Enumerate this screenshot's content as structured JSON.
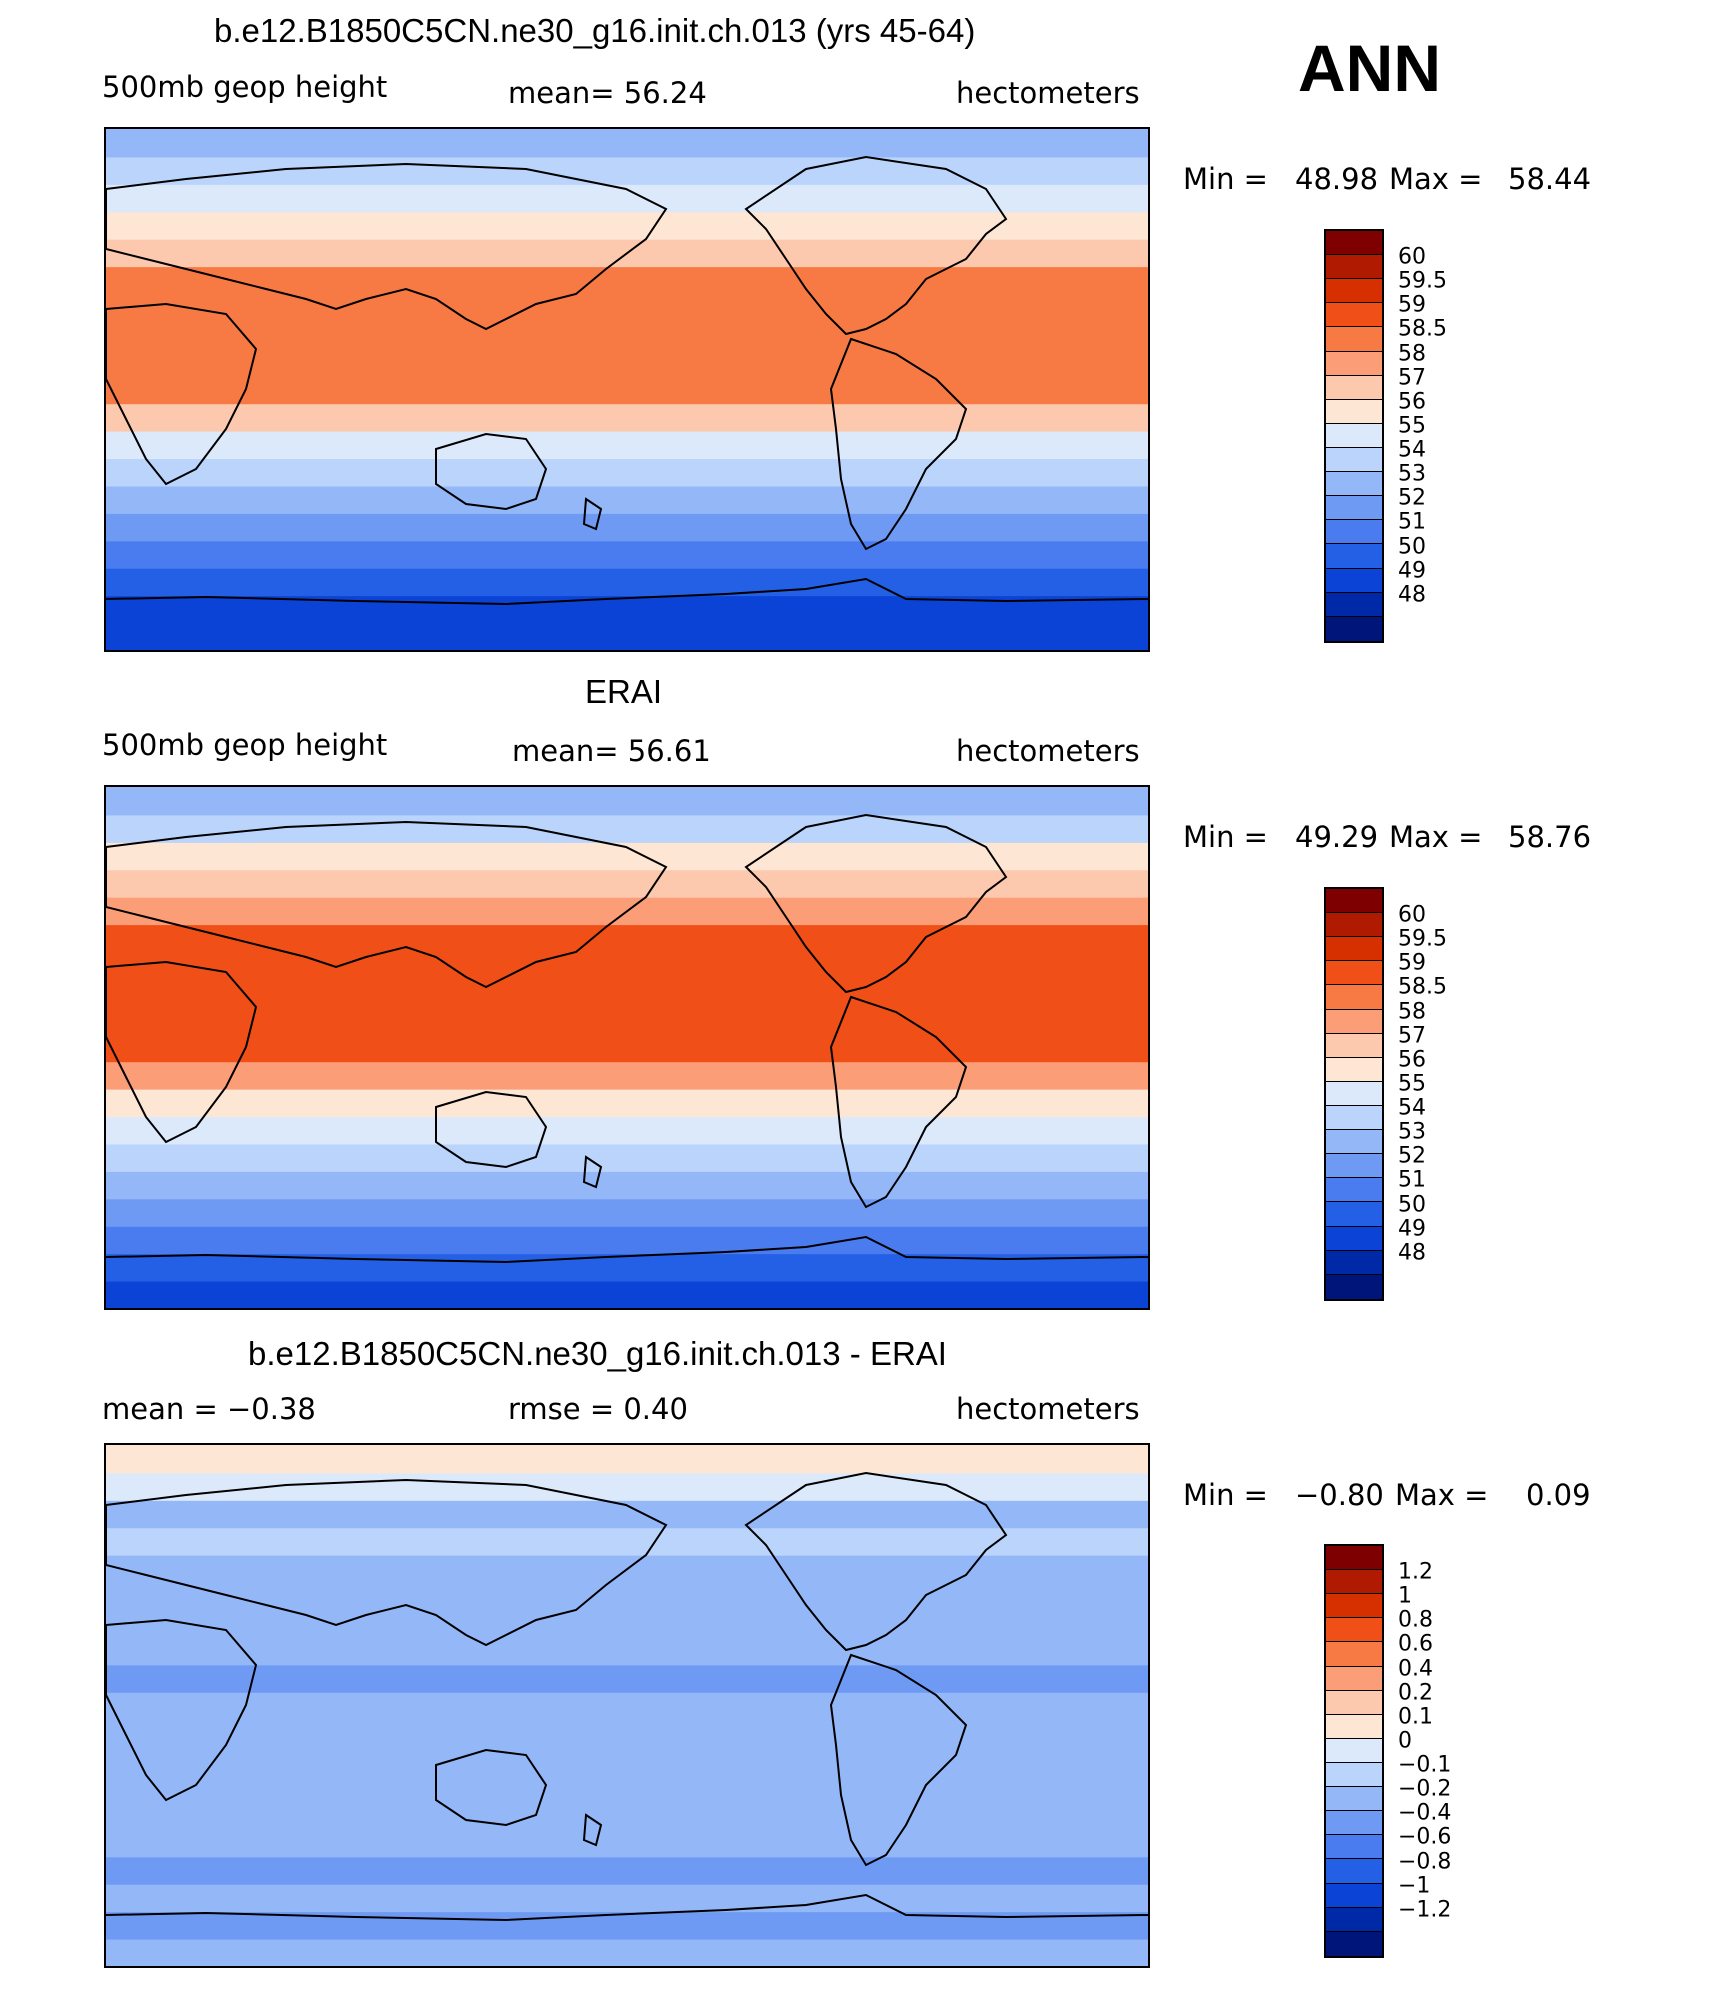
{
  "season": "ANN",
  "panels": [
    {
      "title": "b.e12.B1850C5CN.ne30_g16.init.ch.013 (yrs 45-64)",
      "left_label": "500mb  geop  height",
      "center_label": "mean=   56.24",
      "units": "hectometers",
      "min_label": "Min  =",
      "min_value": "48.98",
      "max_label": "Max  =",
      "max_value": "58.44"
    },
    {
      "title": "ERAI",
      "left_label": "500mb  geop  height",
      "center_label": "mean=   56.61",
      "units": "hectometers",
      "min_label": "Min  =",
      "min_value": "49.29",
      "max_label": "Max  =",
      "max_value": "58.76"
    },
    {
      "title": "b.e12.B1850C5CN.ne30_g16.init.ch.013 - ERAI",
      "left_label": "mean  =    −0.38",
      "center_label": "rmse  =     0.40",
      "units": "hectometers",
      "min_label": "Min  =",
      "min_value": "−0.80",
      "max_label": "Max  =",
      "max_value": "0.09"
    }
  ],
  "colorbar_height": {
    "labels": [
      "60",
      "59.5",
      "59",
      "58.5",
      "58",
      "57",
      "56",
      "55",
      "54",
      "53",
      "52",
      "51",
      "50",
      "49",
      "48"
    ],
    "colors": [
      "#7f0000",
      "#b01a00",
      "#d63000",
      "#f04f18",
      "#f77a45",
      "#fb9e78",
      "#fcc9ae",
      "#fde6d4",
      "#dce9fb",
      "#bad4fb",
      "#94b7f8",
      "#6f9af4",
      "#4a7cef",
      "#2360e5",
      "#0b43d6",
      "#0029a8",
      "#00157a"
    ]
  },
  "colorbar_diff": {
    "labels": [
      "1.2",
      "1",
      "0.8",
      "0.6",
      "0.4",
      "0.2",
      "0.1",
      "0",
      "−0.1",
      "−0.2",
      "−0.4",
      "−0.6",
      "−0.8",
      "−1",
      "−1.2"
    ],
    "colors": [
      "#7f0000",
      "#b01a00",
      "#d63000",
      "#f04f18",
      "#f77a45",
      "#fb9e78",
      "#fcc9ae",
      "#fde6d4",
      "#dce9fb",
      "#bad4fb",
      "#94b7f8",
      "#6f9af4",
      "#4a7cef",
      "#2360e5",
      "#0b43d6",
      "#0029a8",
      "#00157a"
    ]
  },
  "map_fields": {
    "model": [
      "#0b43d6",
      "#0b43d6",
      "#2360e5",
      "#4a7cef",
      "#6f9af4",
      "#94b7f8",
      "#bad4fb",
      "#dce9fb",
      "#fcc9ae",
      "#f77a45",
      "#f77a45",
      "#f77a45",
      "#f77a45",
      "#f77a45",
      "#fcc9ae",
      "#fde6d4",
      "#dce9fb",
      "#bad4fb",
      "#94b7f8"
    ],
    "obs": [
      "#0b43d6",
      "#2360e5",
      "#4a7cef",
      "#6f9af4",
      "#94b7f8",
      "#bad4fb",
      "#dce9fb",
      "#fde6d4",
      "#fb9e78",
      "#f04f18",
      "#f04f18",
      "#f04f18",
      "#f04f18",
      "#f04f18",
      "#fb9e78",
      "#fcc9ae",
      "#fde6d4",
      "#bad4fb",
      "#94b7f8"
    ],
    "diff": [
      "#94b7f8",
      "#6f9af4",
      "#94b7f8",
      "#6f9af4",
      "#94b7f8",
      "#94b7f8",
      "#94b7f8",
      "#94b7f8",
      "#94b7f8",
      "#94b7f8",
      "#6f9af4",
      "#94b7f8",
      "#94b7f8",
      "#94b7f8",
      "#94b7f8",
      "#bad4fb",
      "#94b7f8",
      "#dce9fb",
      "#fde6d4"
    ]
  }
}
